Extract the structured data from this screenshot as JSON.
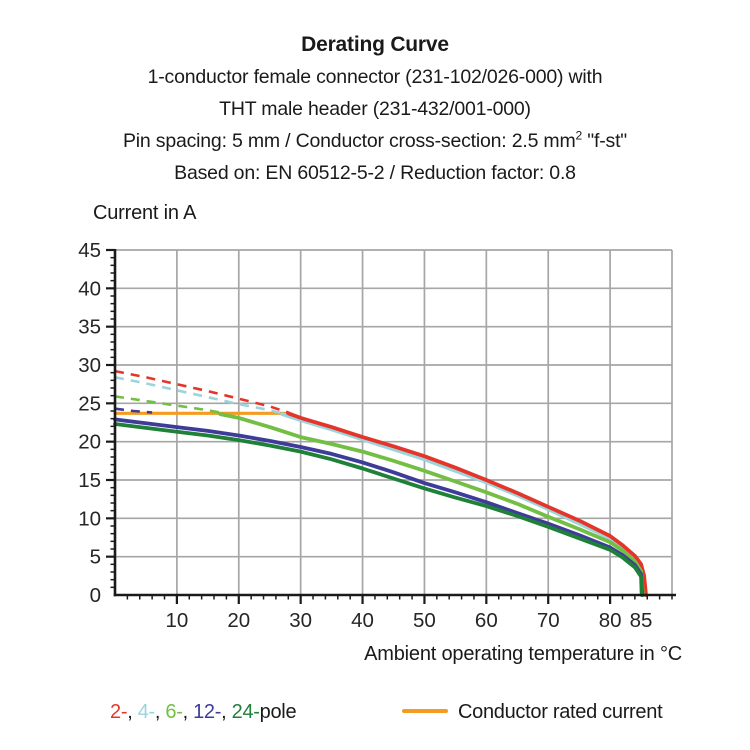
{
  "header": {
    "title": "Derating Curve",
    "line2": "1-conductor female connector (231-102/026-000) with",
    "line3": "THT male header (231-432/001-000)",
    "line4_pre": "Pin spacing: 5 mm / Conductor cross-section: 2.5 mm",
    "line4_sup": "2",
    "line4_post": " \"f-st\"",
    "line5": "Based on: EN 60512-5-2 / Reduction factor: 0.8"
  },
  "axis_titles": {
    "y": "Current in A",
    "x": "Ambient operating temperature in °C"
  },
  "legend": {
    "pole_tokens": [
      {
        "text": "2-",
        "color": "#E5352B"
      },
      {
        "text": ", ",
        "color": "#1A1A1A"
      },
      {
        "text": "4-",
        "color": "#9CD4DB"
      },
      {
        "text": ", ",
        "color": "#1A1A1A"
      },
      {
        "text": "6-",
        "color": "#72BF44"
      },
      {
        "text": ", ",
        "color": "#1A1A1A"
      },
      {
        "text": "12-",
        "color": "#3E3C9B"
      },
      {
        "text": ", ",
        "color": "#1A1A1A"
      },
      {
        "text": "24-",
        "color": "#1F8038"
      },
      {
        "text": "pole",
        "color": "#1A1A1A"
      }
    ],
    "rated_label": "Conductor rated current",
    "rated_color": "#F59B20"
  },
  "chart_data": {
    "type": "line",
    "title": "Derating Curve",
    "xlabel": "Ambient operating temperature in °C",
    "ylabel": "Current in A",
    "xlim": [
      0,
      90
    ],
    "ylim": [
      0,
      45
    ],
    "x_tick_labels": [
      10,
      20,
      30,
      40,
      50,
      60,
      70,
      80,
      85
    ],
    "y_tick_labels": [
      0,
      5,
      10,
      15,
      20,
      25,
      30,
      35,
      40,
      45
    ],
    "x_gridlines": [
      10,
      20,
      30,
      40,
      50,
      60,
      70,
      80,
      90
    ],
    "y_gridlines": [
      5,
      10,
      15,
      20,
      25,
      30,
      35,
      40,
      45
    ],
    "x_minor_step": 2,
    "y_minor_step": 1,
    "grid": true,
    "legend_position": "bottom",
    "colors": {
      "grid": "#A6A6A6",
      "axis": "#1A1A1A",
      "text": "#262626"
    },
    "series": [
      {
        "name": "conductor-rated-current",
        "color": "#F59B20",
        "style": "solid",
        "width": 3.2,
        "points": [
          [
            0,
            23.7
          ],
          [
            28,
            23.7
          ]
        ]
      },
      {
        "name": "4-pole-solid",
        "color": "#9CD4DB",
        "style": "solid",
        "width": 3.8,
        "points": [
          [
            27,
            23.6
          ],
          [
            30,
            22.8
          ],
          [
            35,
            21.6
          ],
          [
            40,
            20.3
          ],
          [
            45,
            19.0
          ],
          [
            50,
            17.7
          ],
          [
            55,
            16.2
          ],
          [
            60,
            14.7
          ],
          [
            65,
            13.0
          ],
          [
            70,
            11.2
          ],
          [
            75,
            9.3
          ],
          [
            80,
            7.4
          ],
          [
            82,
            6.2
          ],
          [
            84,
            4.8
          ],
          [
            85,
            3.6
          ],
          [
            85.4,
            2.2
          ],
          [
            85.6,
            0
          ]
        ]
      },
      {
        "name": "2-pole-solid",
        "color": "#E5352B",
        "style": "solid",
        "width": 3.8,
        "points": [
          [
            28,
            23.7
          ],
          [
            30,
            23.1
          ],
          [
            35,
            21.9
          ],
          [
            40,
            20.6
          ],
          [
            45,
            19.4
          ],
          [
            50,
            18.1
          ],
          [
            55,
            16.6
          ],
          [
            60,
            15.0
          ],
          [
            65,
            13.3
          ],
          [
            70,
            11.5
          ],
          [
            75,
            9.7
          ],
          [
            80,
            7.7
          ],
          [
            82,
            6.5
          ],
          [
            84,
            5.1
          ],
          [
            85,
            4.0
          ],
          [
            85.5,
            2.5
          ],
          [
            85.8,
            0
          ]
        ]
      },
      {
        "name": "6-pole-solid",
        "color": "#72BF44",
        "style": "solid",
        "width": 3.8,
        "points": [
          [
            17,
            23.6
          ],
          [
            20,
            23.1
          ],
          [
            25,
            21.9
          ],
          [
            30,
            20.6
          ],
          [
            35,
            19.7
          ],
          [
            40,
            18.7
          ],
          [
            45,
            17.5
          ],
          [
            50,
            16.2
          ],
          [
            55,
            14.8
          ],
          [
            60,
            13.4
          ],
          [
            65,
            11.9
          ],
          [
            70,
            10.2
          ],
          [
            75,
            8.6
          ],
          [
            80,
            6.9
          ],
          [
            82,
            5.8
          ],
          [
            84,
            4.4
          ],
          [
            85,
            3.1
          ],
          [
            85.3,
            0
          ]
        ]
      },
      {
        "name": "12-pole-solid",
        "color": "#3E3C9B",
        "style": "solid",
        "width": 3.8,
        "points": [
          [
            0,
            22.9
          ],
          [
            5,
            22.4
          ],
          [
            10,
            21.9
          ],
          [
            15,
            21.4
          ],
          [
            20,
            20.8
          ],
          [
            25,
            20.1
          ],
          [
            30,
            19.3
          ],
          [
            35,
            18.4
          ],
          [
            40,
            17.3
          ],
          [
            45,
            16.0
          ],
          [
            50,
            14.6
          ],
          [
            55,
            13.4
          ],
          [
            60,
            12.1
          ],
          [
            65,
            10.7
          ],
          [
            70,
            9.3
          ],
          [
            75,
            7.8
          ],
          [
            80,
            6.2
          ],
          [
            82,
            5.2
          ],
          [
            84,
            3.9
          ],
          [
            85,
            2.7
          ],
          [
            85.2,
            0
          ]
        ]
      },
      {
        "name": "24-pole-solid",
        "color": "#1F8038",
        "style": "solid",
        "width": 3.8,
        "points": [
          [
            0,
            22.3
          ],
          [
            5,
            21.8
          ],
          [
            10,
            21.3
          ],
          [
            15,
            20.8
          ],
          [
            20,
            20.2
          ],
          [
            25,
            19.5
          ],
          [
            30,
            18.7
          ],
          [
            35,
            17.7
          ],
          [
            40,
            16.5
          ],
          [
            45,
            15.2
          ],
          [
            50,
            13.9
          ],
          [
            55,
            12.7
          ],
          [
            60,
            11.6
          ],
          [
            65,
            10.3
          ],
          [
            70,
            8.9
          ],
          [
            75,
            7.4
          ],
          [
            80,
            5.9
          ],
          [
            82,
            4.9
          ],
          [
            84,
            3.6
          ],
          [
            85,
            2.4
          ],
          [
            85.1,
            0
          ]
        ]
      },
      {
        "name": "4-pole-dashed",
        "color": "#9CD4DB",
        "style": "dashed",
        "width": 2.6,
        "points": [
          [
            0,
            28.4
          ],
          [
            5,
            27.6
          ],
          [
            10,
            26.7
          ],
          [
            15,
            25.8
          ],
          [
            20,
            24.9
          ],
          [
            25,
            24.1
          ],
          [
            27,
            23.7
          ]
        ]
      },
      {
        "name": "2-pole-dashed",
        "color": "#E5352B",
        "style": "dashed",
        "width": 2.6,
        "points": [
          [
            0,
            29.2
          ],
          [
            5,
            28.4
          ],
          [
            10,
            27.5
          ],
          [
            15,
            26.6
          ],
          [
            20,
            25.6
          ],
          [
            25,
            24.6
          ],
          [
            28,
            23.8
          ]
        ]
      },
      {
        "name": "6-pole-dashed",
        "color": "#72BF44",
        "style": "dashed",
        "width": 2.6,
        "points": [
          [
            0,
            25.9
          ],
          [
            5,
            25.3
          ],
          [
            10,
            24.7
          ],
          [
            15,
            24.1
          ],
          [
            17,
            23.8
          ]
        ]
      },
      {
        "name": "12-pole-dashed",
        "color": "#3E3C9B",
        "style": "dashed",
        "width": 2.6,
        "points": [
          [
            0,
            24.3
          ],
          [
            3,
            24.0
          ],
          [
            6,
            23.8
          ]
        ]
      }
    ]
  }
}
